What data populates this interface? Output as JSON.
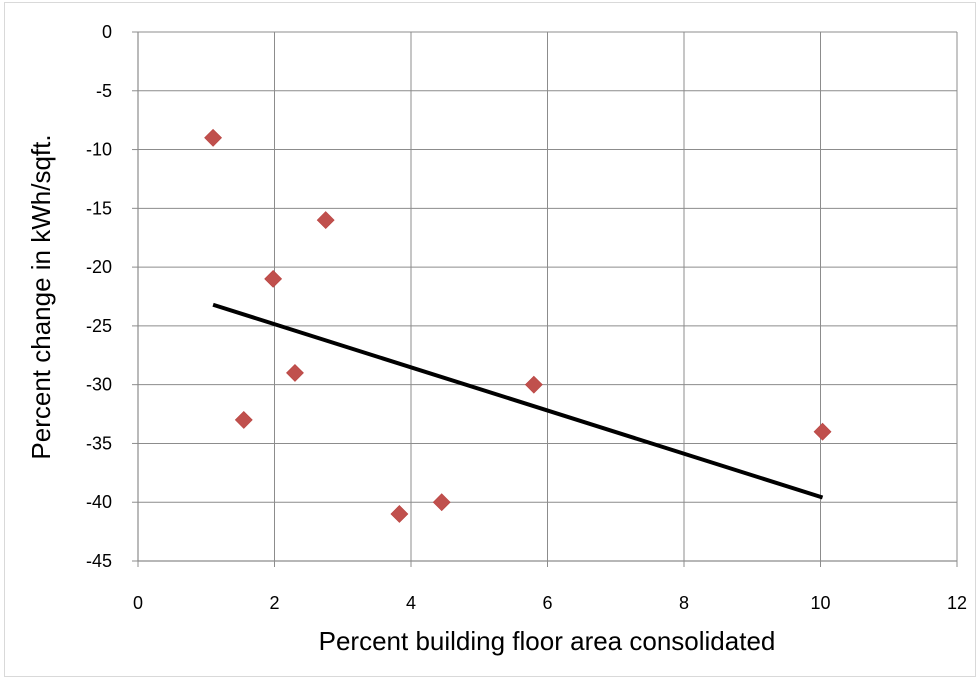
{
  "chart_data": {
    "type": "scatter",
    "title": "",
    "xlabel": "Percent  building floor area consolidated",
    "ylabel": "Percent change in kWh/sqft.",
    "xlim": [
      0,
      12
    ],
    "ylim": [
      -45,
      0
    ],
    "x_ticks": [
      0,
      2,
      4,
      6,
      8,
      10,
      12
    ],
    "y_ticks": [
      0,
      -5,
      -10,
      -15,
      -20,
      -25,
      -30,
      -35,
      -40,
      -45
    ],
    "grid": "vertical and horizontal major gridlines",
    "legend": "none",
    "series": [
      {
        "marker": "diamond",
        "color": "#C0504D",
        "points": [
          {
            "x": 1.1,
            "y": -9
          },
          {
            "x": 1.55,
            "y": -33
          },
          {
            "x": 1.98,
            "y": -21
          },
          {
            "x": 2.3,
            "y": -29
          },
          {
            "x": 2.75,
            "y": -16
          },
          {
            "x": 3.83,
            "y": -41
          },
          {
            "x": 4.45,
            "y": -40
          },
          {
            "x": 5.8,
            "y": -30
          },
          {
            "x": 10.03,
            "y": -34
          }
        ]
      }
    ],
    "trendline": {
      "type": "linear",
      "color": "#000000",
      "from": {
        "x": 1.1,
        "y": -23.2
      },
      "to": {
        "x": 10.03,
        "y": -39.6
      }
    }
  }
}
